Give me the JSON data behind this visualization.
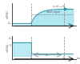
{
  "cyan": "#7fd8e8",
  "line_color": "#2090a0",
  "dashed_color": "#888888",
  "text_color": "#555555",
  "t1": 0.3,
  "t2": 0.85,
  "vds_high": 0.8,
  "vds_low": 0.1,
  "vds_ylim": [
    -0.05,
    1.1
  ],
  "ideal_level": 0.52,
  "vgs_high": 0.7,
  "vgs_low": 0.12,
  "vgs_ylim": [
    -0.15,
    1.0
  ],
  "N": 2000,
  "osc_freq": 12,
  "osc_amp": 0.1,
  "osc_decay": 6,
  "rise_tau": 5
}
